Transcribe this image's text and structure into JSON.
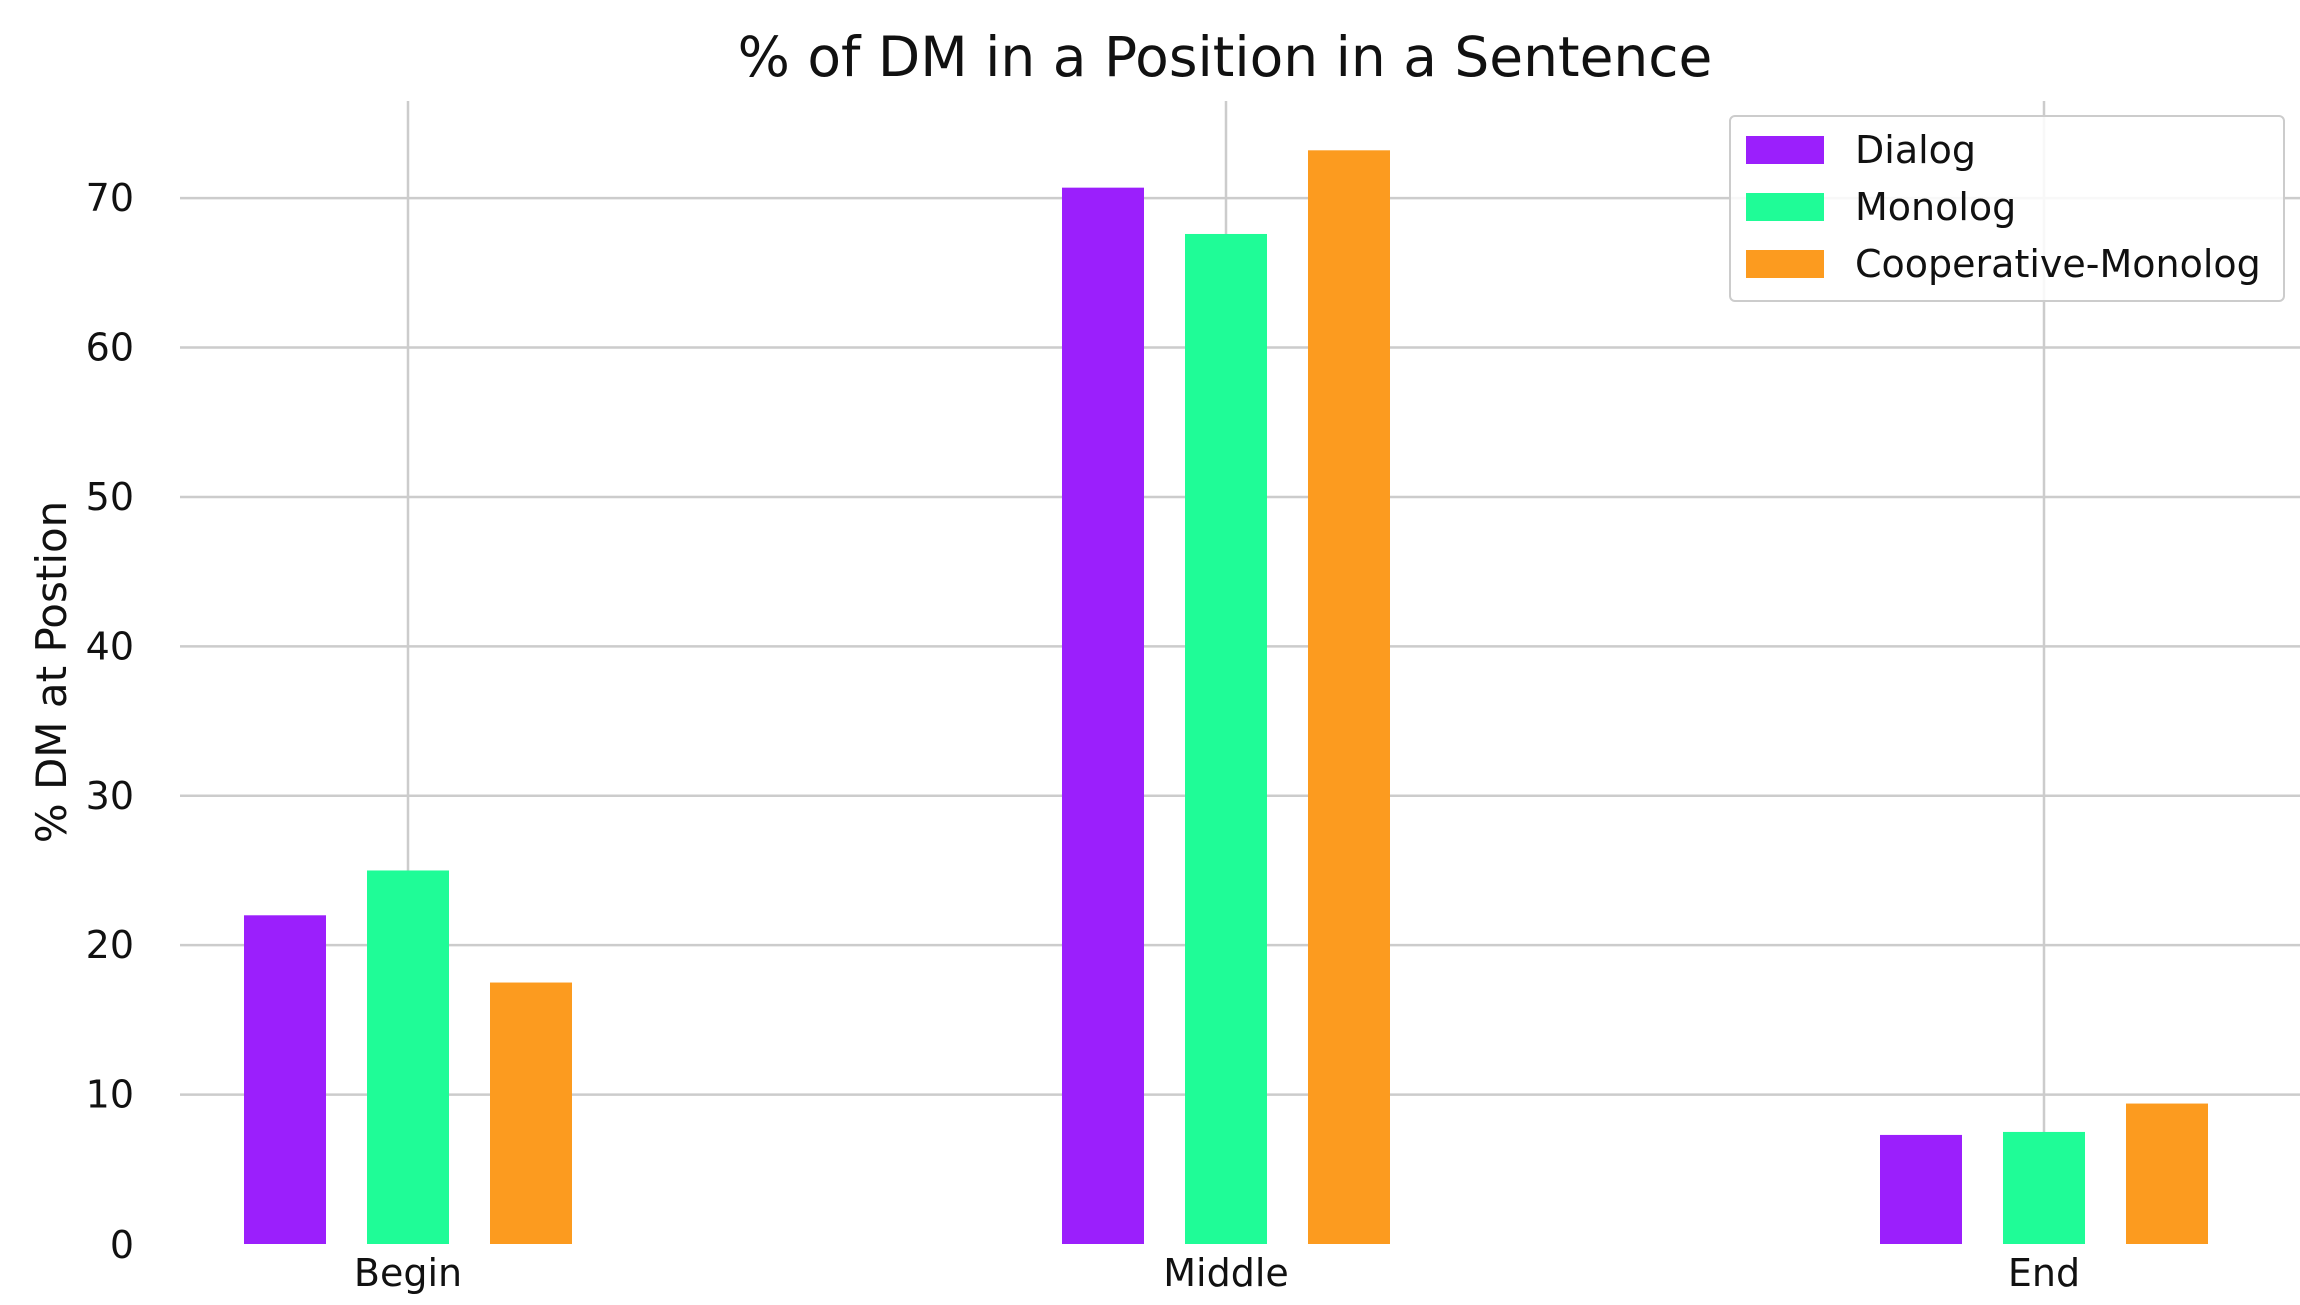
{
  "chart_data": {
    "type": "bar",
    "title": "% of DM in a Position in a Sentence",
    "xlabel": "",
    "ylabel": "% DM at Postion",
    "categories": [
      "Begin",
      "Middle",
      "End"
    ],
    "series": [
      {
        "name": "Dialog",
        "color": "#9b1ffc",
        "values": [
          22.0,
          70.7,
          7.3
        ]
      },
      {
        "name": "Monolog",
        "color": "#1ffc97",
        "values": [
          25.0,
          67.6,
          7.5
        ]
      },
      {
        "name": "Cooperative-Monolog",
        "color": "#fc9b1f",
        "values": [
          17.5,
          73.2,
          9.4
        ]
      }
    ],
    "ylim": [
      0,
      76.5
    ],
    "yticks": [
      0,
      10,
      20,
      30,
      40,
      50,
      60,
      70
    ],
    "grid": true,
    "legend_position": "top-right"
  }
}
